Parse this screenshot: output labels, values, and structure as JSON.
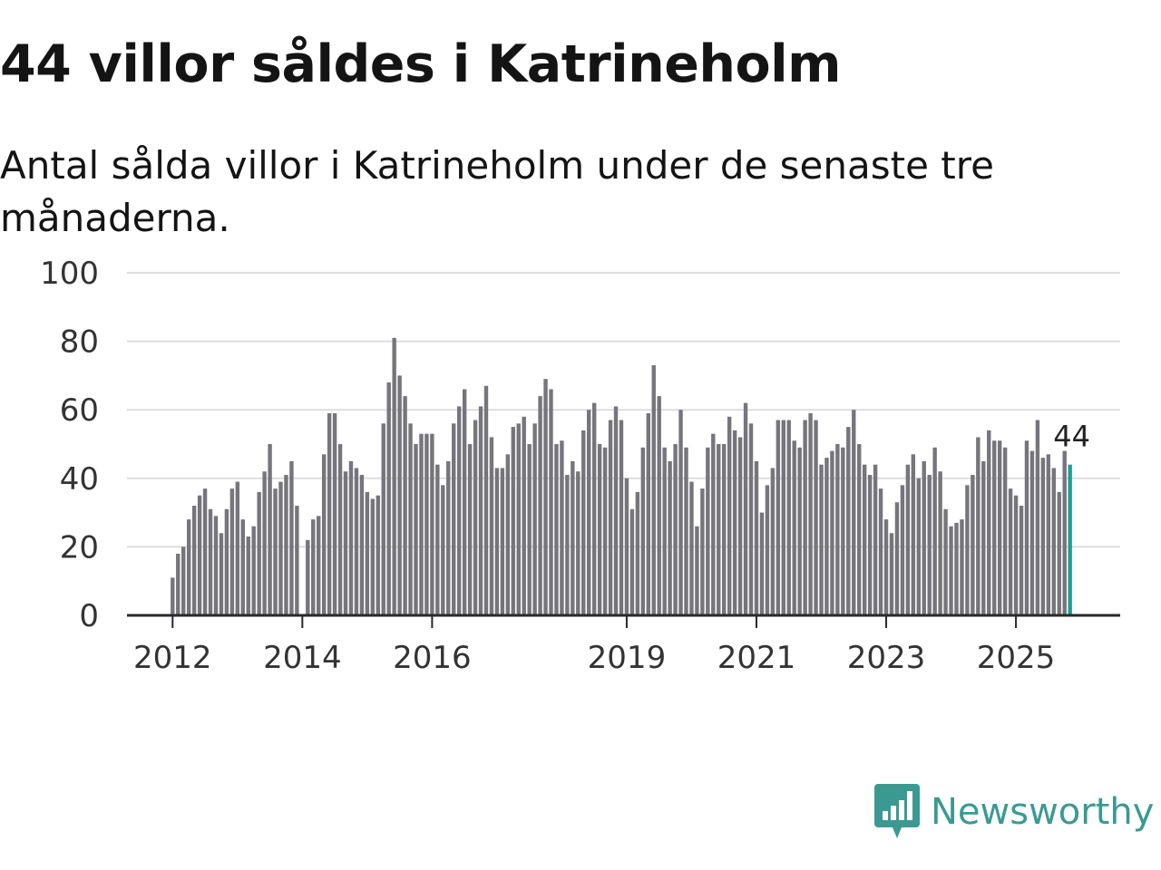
{
  "title": "44 villor såldes i Katrineholm",
  "subtitle": "Antal sålda villor i Katrineholm under de senaste tre månaderna.",
  "brand": {
    "name": "Newsworthy",
    "color": "#3a9a92"
  },
  "colors": {
    "bar": "#76757b",
    "highlight": "#1f9e95",
    "grid": "#dedede",
    "axis": "#2a2a2a"
  },
  "chart_data": {
    "type": "bar",
    "title": "44 villor såldes i Katrineholm",
    "xlabel": "",
    "ylabel": "",
    "ylim": [
      0,
      100
    ],
    "yticks": [
      0,
      20,
      40,
      60,
      80,
      100
    ],
    "xtick_labels": [
      "2012",
      "2014",
      "2016",
      "2019",
      "2021",
      "2023",
      "2025"
    ],
    "start_month": "2012-01",
    "highlight_value": 44,
    "highlight_label": "44",
    "series": [
      {
        "name": "Antal sålda villor (3 mån)",
        "values": [
          11,
          18,
          20,
          28,
          32,
          35,
          37,
          31,
          29,
          24,
          31,
          37,
          39,
          28,
          23,
          26,
          36,
          42,
          50,
          37,
          39,
          41,
          45,
          32,
          null,
          22,
          28,
          29,
          47,
          59,
          59,
          50,
          42,
          45,
          43,
          41,
          36,
          34,
          35,
          56,
          68,
          81,
          70,
          64,
          56,
          50,
          53,
          53,
          53,
          44,
          38,
          45,
          56,
          61,
          66,
          50,
          57,
          61,
          67,
          52,
          43,
          43,
          47,
          55,
          56,
          58,
          50,
          56,
          64,
          69,
          66,
          50,
          51,
          41,
          45,
          42,
          54,
          60,
          62,
          50,
          49,
          57,
          61,
          57,
          40,
          31,
          36,
          49,
          59,
          73,
          64,
          49,
          45,
          50,
          60,
          49,
          39,
          26,
          37,
          49,
          53,
          50,
          50,
          58,
          54,
          52,
          62,
          56,
          45,
          30,
          38,
          43,
          57,
          57,
          57,
          51,
          49,
          57,
          59,
          57,
          44,
          46,
          48,
          50,
          49,
          55,
          60,
          50,
          44,
          41,
          44,
          37,
          28,
          24,
          33,
          38,
          44,
          47,
          40,
          45,
          41,
          49,
          42,
          31,
          26,
          27,
          28,
          38,
          41,
          52,
          45,
          54,
          51,
          51,
          49,
          37,
          35,
          32,
          51,
          48,
          57,
          46,
          47,
          43,
          36,
          48,
          44
        ]
      }
    ]
  }
}
